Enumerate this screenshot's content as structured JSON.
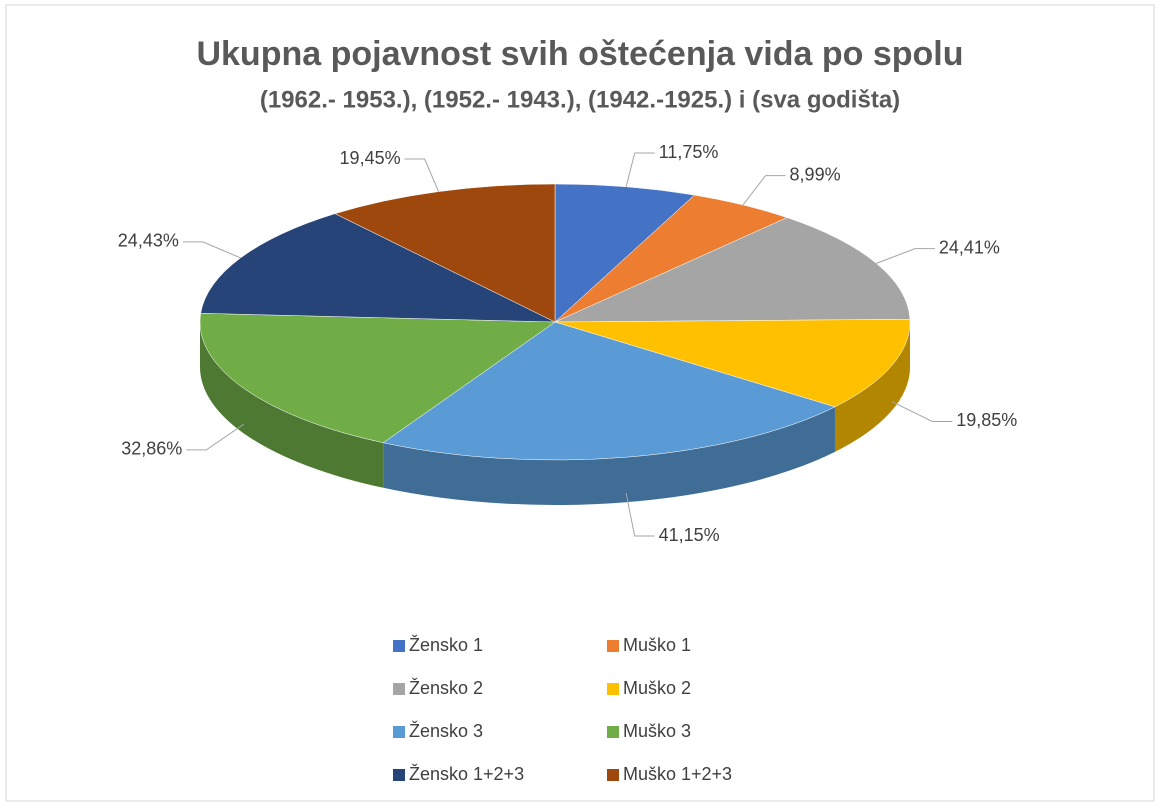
{
  "chart_data": {
    "type": "pie3d",
    "title": "Ukupna pojavnost svih oštećenja vida po spolu",
    "subtitle": "(1962.- 1953.), (1952.- 1943.), (1942.-1925.) i (sva godišta)",
    "categories": [
      "Žensko 1",
      "Muško 1",
      "Žensko 2",
      "Muško 2",
      "Žensko 3",
      "Muško 3",
      "Žensko 1+2+3",
      "Muško 1+2+3"
    ],
    "values": [
      11.75,
      8.99,
      24.41,
      19.85,
      41.15,
      32.86,
      24.43,
      19.45
    ],
    "value_labels": [
      "11,75%",
      "8,99%",
      "24,41%",
      "19,85%",
      "41,15%",
      "32,86%",
      "24,43%",
      "19,45%"
    ],
    "colors": [
      "#4472c4",
      "#ed7d31",
      "#a5a5a5",
      "#ffc000",
      "#5b9bd5",
      "#70ad47",
      "#264478",
      "#9e480e"
    ],
    "legend": "bottom"
  }
}
